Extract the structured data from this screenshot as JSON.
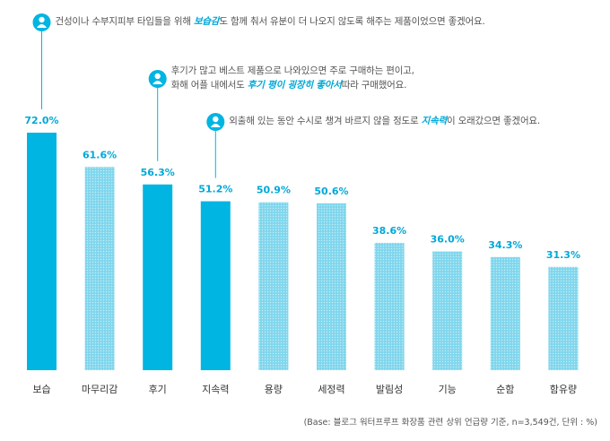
{
  "chart_data": {
    "type": "bar",
    "categories": [
      "보습",
      "마무리감",
      "후기",
      "지속력",
      "용량",
      "세정력",
      "발림성",
      "기능",
      "순함",
      "함유량"
    ],
    "values": [
      72.0,
      61.6,
      56.3,
      51.2,
      50.9,
      50.6,
      38.6,
      36.0,
      34.3,
      31.3
    ],
    "value_labels": [
      "72.0%",
      "61.6%",
      "56.3%",
      "51.2%",
      "50.9%",
      "50.6%",
      "38.6%",
      "36.0%",
      "34.3%",
      "31.3%"
    ],
    "highlighted": [
      "보습",
      "후기",
      "지속력"
    ],
    "colors": {
      "highlight": "#00b5e2",
      "normal": "#79d3ea",
      "label": "#00a8d8",
      "connector": "#00b5e2"
    },
    "ylim": [
      0,
      72
    ],
    "annotations": [
      {
        "target": "보습",
        "icon": "user-icon",
        "lines": [
          [
            "건성이나 수부지피부 타입들을 위해 ",
            "보습감",
            "도 함께 춰서 유분이 더 나오지 않도록 해주는 제품이었으면 좋겠어요."
          ]
        ]
      },
      {
        "target": "후기",
        "icon": "user-icon",
        "lines": [
          [
            "후기가 많고 베스트 제품으로 나와있으면 주로 구매하는 편이고,",
            "",
            ""
          ],
          [
            "화해 어플 내에서도 ",
            "후기 평이 굉장히 좋아서",
            "따라 구매했어요."
          ]
        ]
      },
      {
        "target": "지속력",
        "icon": "user-icon",
        "lines": [
          [
            "외출해 있는 동안 수시로 챙겨 바르지 않을 정도로 ",
            "지속력",
            "이 오래갔으면 좋겠어요."
          ]
        ]
      }
    ],
    "footnote": "(Base: 블로그 워터프루프 화장품 관련 상위 언급량 기준, n=3,549건, 단위 : %)"
  }
}
